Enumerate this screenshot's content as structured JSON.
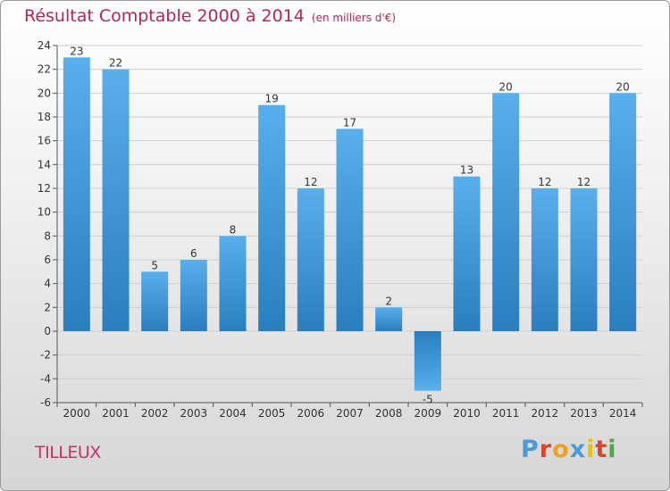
{
  "header": {
    "title": "Résultat Comptable 2000 à 2014",
    "unit": "(en milliers d'€)"
  },
  "footer": {
    "commune": "TILLEUX",
    "logo_text": "Proxiti"
  },
  "colors": {
    "title": "#b5245a",
    "bar_top": "#5aaeeb",
    "bar_bottom": "#2a7ebf",
    "logo": [
      "#4a9ad8",
      "#d8452b",
      "#f0a020",
      "#4a9ad8",
      "#e0c020",
      "#d8452b",
      "#4aa84a"
    ]
  },
  "chart_data": {
    "type": "bar",
    "title": "Résultat Comptable 2000 à 2014",
    "subtitle": "(en milliers d'€)",
    "categories": [
      "2000",
      "2001",
      "2002",
      "2003",
      "2004",
      "2005",
      "2006",
      "2007",
      "2008",
      "2009",
      "2010",
      "2011",
      "2012",
      "2013",
      "2014"
    ],
    "values": [
      23,
      22,
      5,
      6,
      8,
      19,
      12,
      17,
      2,
      -5,
      13,
      20,
      12,
      12,
      20
    ],
    "ylim": [
      -6,
      24
    ],
    "yticks": [
      -6,
      -4,
      -2,
      0,
      2,
      4,
      6,
      8,
      10,
      12,
      14,
      16,
      18,
      20,
      22,
      24
    ],
    "grid": true,
    "xlabel": "",
    "ylabel": ""
  }
}
